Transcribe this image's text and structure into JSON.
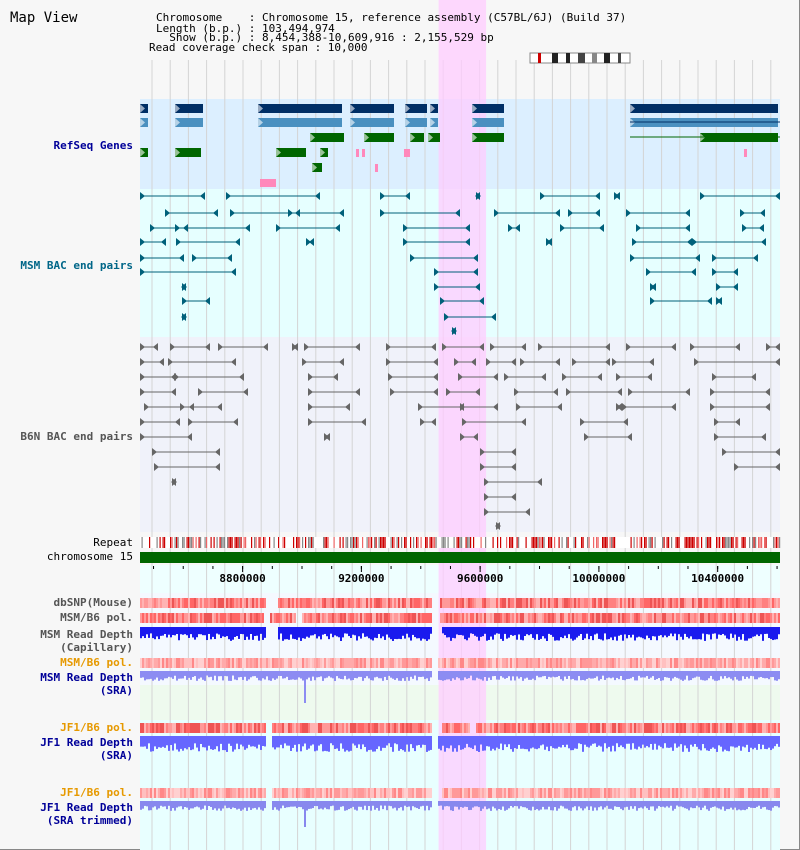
{
  "view": {
    "title": "Map View",
    "chromosome_line": "Chromosome    : Chromosome 15, reference assembly (C57BL/6J) (Build 37)",
    "length_line": "Length (b.p.) : 103,494,974",
    "show_line": "  Show (b.p.) : 8,454,388-10,609,916 : 2,155,529 bp",
    "coverage_line": "Read coverage check span : 10,000"
  },
  "tracks": {
    "refseq": "RefSeq Genes",
    "msm_bac": "MSM BAC end pairs",
    "b6n_bac": "B6N BAC end pairs",
    "repeat": "Repeat",
    "chromosome": "chromosome 15",
    "dbsnp": "dbSNP(Mouse)",
    "msm_b6_pol_1": "MSM/B6 pol.",
    "msm_read_depth_cap": "MSM Read Depth\n(Capillary)",
    "msm_b6_pol_2": "MSM/B6 pol.",
    "msm_read_depth_sra": "MSM Read Depth\n(SRA)",
    "jf1_b6_pol_1": "JF1/B6 pol.",
    "jf1_read_depth_sra": "JF1 Read Depth\n(SRA)",
    "jf1_b6_pol_2": "JF1/B6 pol.",
    "jf1_read_depth_trim": "JF1 Read Depth\n(SRA trimmed)"
  },
  "axis": {
    "range_bp": [
      8454388,
      10609916
    ],
    "ticks": [
      "8800000",
      "9200000",
      "9600000",
      "10000000",
      "10400000"
    ],
    "tick_values": [
      8800000,
      9200000,
      9600000,
      10000000,
      10400000
    ]
  },
  "highlight": {
    "start_bp": 9460000,
    "end_bp": 9620000
  },
  "colors": {
    "refseq_dark": "#002f66",
    "refseq_mid": "#4a90c0",
    "refseq_green": "#006600",
    "refseq_pink": "#ff88bb",
    "msm_bac": "#00607a",
    "b6n_bac": "#666666",
    "chromosome_bar": "#006600",
    "highlight": "#ffccff",
    "label_blue": "#000099",
    "label_orange": "#e69900",
    "label_teal": "#006688",
    "depth_blue": "#0000ee",
    "depth_light": "#6666ff"
  }
}
